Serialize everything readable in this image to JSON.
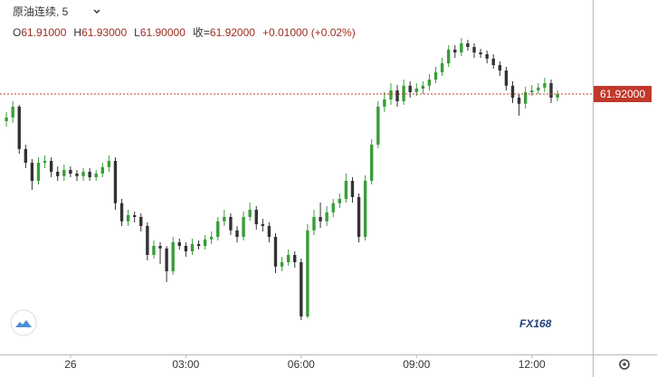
{
  "chart_data": {
    "type": "candlestick",
    "title": "原油连续, 5",
    "legend_items": [
      {
        "key": "O",
        "value": "61.91000"
      },
      {
        "key": "H",
        "value": "61.93000"
      },
      {
        "key": "L",
        "value": "61.90000"
      },
      {
        "key": "收=",
        "value": "61.92000"
      }
    ],
    "change": "+0.01000 (+0.02%)",
    "last_price": {
      "value": 61.92,
      "label": "61.92000"
    },
    "watermark": "FX168",
    "up_color": "#3a9d3a",
    "down_color": "#333333",
    "xlim": [
      -110,
      815
    ],
    "ylim": [
      61.2,
      62.18
    ],
    "xticks": [
      {
        "value": 0,
        "label": "26"
      },
      {
        "value": 180,
        "label": "03:00"
      },
      {
        "value": 360,
        "label": "06:00"
      },
      {
        "value": 540,
        "label": "09:00"
      },
      {
        "value": 720,
        "label": "12:00"
      }
    ],
    "x": [
      -100,
      -90,
      -80,
      -70,
      -60,
      -50,
      -40,
      -30,
      -20,
      -10,
      0,
      10,
      20,
      30,
      40,
      50,
      60,
      70,
      80,
      90,
      100,
      110,
      120,
      130,
      140,
      150,
      160,
      170,
      180,
      190,
      200,
      210,
      220,
      230,
      240,
      250,
      260,
      270,
      280,
      290,
      300,
      310,
      320,
      330,
      340,
      350,
      360,
      370,
      380,
      390,
      400,
      410,
      420,
      430,
      440,
      450,
      460,
      470,
      480,
      490,
      500,
      510,
      520,
      530,
      540,
      550,
      560,
      570,
      580,
      590,
      600,
      610,
      620,
      630,
      640,
      650,
      660,
      670,
      680,
      690,
      700,
      710,
      720,
      730,
      740,
      750,
      760
    ],
    "ohlc": [
      [
        61.845,
        61.87,
        61.83,
        61.855
      ],
      [
        61.855,
        61.9,
        61.84,
        61.885
      ],
      [
        61.885,
        61.89,
        61.755,
        61.768
      ],
      [
        61.768,
        61.78,
        61.715,
        61.73
      ],
      [
        61.73,
        61.74,
        61.655,
        61.68
      ],
      [
        61.68,
        61.745,
        61.67,
        61.73
      ],
      [
        61.73,
        61.75,
        61.715,
        61.735
      ],
      [
        61.735,
        61.745,
        61.69,
        61.705
      ],
      [
        61.705,
        61.72,
        61.68,
        61.693
      ],
      [
        61.693,
        61.725,
        61.68,
        61.71
      ],
      [
        61.71,
        61.72,
        61.69,
        61.7
      ],
      [
        61.7,
        61.71,
        61.68,
        61.693
      ],
      [
        61.693,
        61.715,
        61.68,
        61.705
      ],
      [
        61.705,
        61.715,
        61.68,
        61.69
      ],
      [
        61.69,
        61.71,
        61.68,
        61.7
      ],
      [
        61.7,
        61.73,
        61.69,
        61.718
      ],
      [
        61.718,
        61.75,
        61.705,
        61.735
      ],
      [
        61.735,
        61.745,
        61.6,
        61.618
      ],
      [
        61.618,
        61.63,
        61.555,
        61.568
      ],
      [
        61.568,
        61.6,
        61.555,
        61.585
      ],
      [
        61.585,
        61.595,
        61.565,
        61.58
      ],
      [
        61.58,
        61.59,
        61.54,
        61.555
      ],
      [
        61.555,
        61.565,
        61.46,
        61.475
      ],
      [
        61.475,
        61.515,
        61.465,
        61.5
      ],
      [
        61.5,
        61.51,
        61.45,
        61.493
      ],
      [
        61.493,
        61.5,
        61.4,
        61.43
      ],
      [
        61.43,
        61.525,
        61.42,
        61.51
      ],
      [
        61.51,
        61.52,
        61.49,
        61.5
      ],
      [
        61.5,
        61.51,
        61.47,
        61.485
      ],
      [
        61.485,
        61.52,
        61.475,
        61.505
      ],
      [
        61.505,
        61.515,
        61.49,
        61.5
      ],
      [
        61.5,
        61.53,
        61.49,
        61.518
      ],
      [
        61.518,
        61.54,
        61.505,
        61.525
      ],
      [
        61.525,
        61.58,
        61.515,
        61.568
      ],
      [
        61.568,
        61.6,
        61.555,
        61.58
      ],
      [
        61.58,
        61.59,
        61.53,
        61.543
      ],
      [
        61.543,
        61.555,
        61.51,
        61.525
      ],
      [
        61.525,
        61.595,
        61.515,
        61.58
      ],
      [
        61.58,
        61.62,
        61.57,
        61.6
      ],
      [
        61.6,
        61.61,
        61.545,
        61.56
      ],
      [
        61.56,
        61.575,
        61.54,
        61.555
      ],
      [
        61.555,
        61.565,
        61.51,
        61.525
      ],
      [
        61.525,
        61.535,
        61.425,
        61.443
      ],
      [
        61.443,
        61.47,
        61.43,
        61.455
      ],
      [
        61.455,
        61.49,
        61.445,
        61.475
      ],
      [
        61.475,
        61.485,
        61.44,
        61.455
      ],
      [
        61.455,
        61.465,
        61.295,
        61.305
      ],
      [
        61.305,
        61.56,
        61.3,
        61.543
      ],
      [
        61.543,
        61.6,
        61.53,
        61.58
      ],
      [
        61.58,
        61.62,
        61.55,
        61.568
      ],
      [
        61.568,
        61.61,
        61.555,
        61.593
      ],
      [
        61.593,
        61.63,
        61.58,
        61.618
      ],
      [
        61.618,
        61.645,
        61.605,
        61.63
      ],
      [
        61.63,
        61.7,
        61.62,
        61.68
      ],
      [
        61.68,
        61.69,
        61.62,
        61.635
      ],
      [
        61.635,
        61.645,
        61.51,
        61.525
      ],
      [
        61.525,
        61.695,
        61.515,
        61.68
      ],
      [
        61.68,
        61.795,
        61.67,
        61.78
      ],
      [
        61.78,
        61.9,
        61.77,
        61.885
      ],
      [
        61.885,
        61.925,
        61.87,
        61.905
      ],
      [
        61.905,
        61.95,
        61.89,
        61.93
      ],
      [
        61.93,
        61.945,
        61.885,
        61.9
      ],
      [
        61.9,
        61.96,
        61.89,
        61.943
      ],
      [
        61.943,
        61.955,
        61.91,
        61.925
      ],
      [
        61.925,
        61.95,
        61.915,
        61.935
      ],
      [
        61.935,
        61.955,
        61.92,
        61.943
      ],
      [
        61.943,
        61.975,
        61.93,
        61.96
      ],
      [
        61.96,
        61.995,
        61.95,
        61.98
      ],
      [
        61.98,
        62.02,
        61.97,
        62.005
      ],
      [
        62.005,
        62.055,
        61.995,
        62.043
      ],
      [
        62.043,
        62.055,
        62.02,
        62.035
      ],
      [
        62.035,
        62.075,
        62.025,
        62.06
      ],
      [
        62.06,
        62.07,
        62.04,
        62.05
      ],
      [
        62.05,
        62.06,
        62.02,
        62.035
      ],
      [
        62.035,
        62.045,
        62.02,
        62.03
      ],
      [
        62.03,
        62.04,
        62.005,
        62.018
      ],
      [
        62.018,
        62.03,
        61.99,
        62.0
      ],
      [
        62.0,
        62.01,
        61.97,
        61.985
      ],
      [
        61.985,
        61.995,
        61.93,
        61.943
      ],
      [
        61.943,
        61.955,
        61.895,
        61.91
      ],
      [
        61.91,
        61.92,
        61.86,
        61.893
      ],
      [
        61.893,
        61.94,
        61.88,
        61.925
      ],
      [
        61.925,
        61.945,
        61.915,
        61.93
      ],
      [
        61.93,
        61.95,
        61.92,
        61.938
      ],
      [
        61.938,
        61.965,
        61.925,
        61.95
      ],
      [
        61.95,
        61.96,
        61.895,
        61.91
      ],
      [
        61.91,
        61.93,
        61.9,
        61.92
      ]
    ]
  }
}
